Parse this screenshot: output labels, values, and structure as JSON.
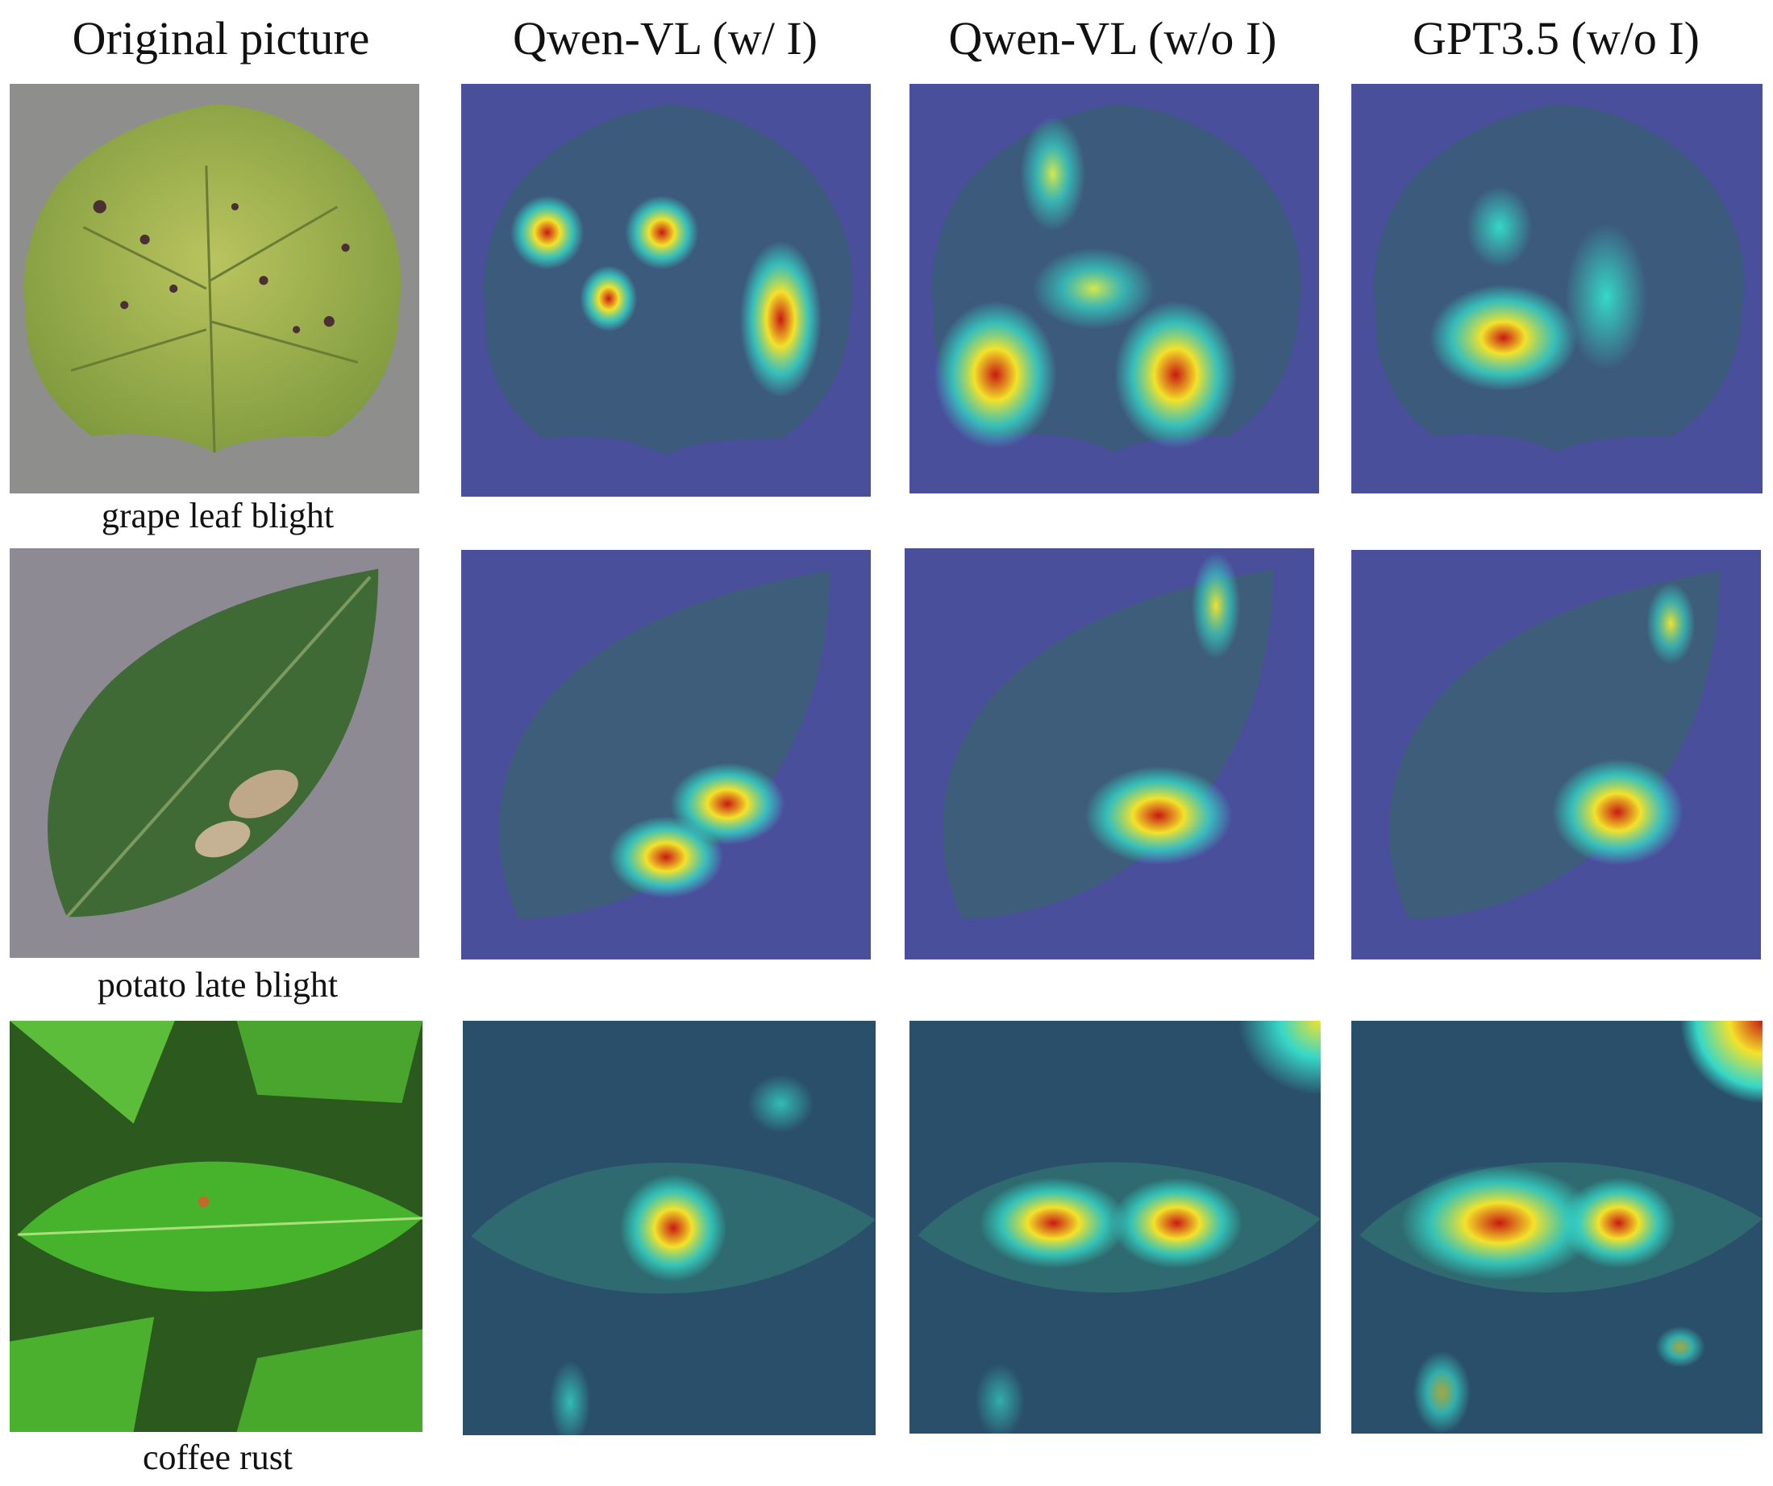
{
  "columns": [
    {
      "id": "original",
      "title": "Original picture"
    },
    {
      "id": "qwen_with_i",
      "title": "Qwen-VL (w/ I)"
    },
    {
      "id": "qwen_without_i",
      "title": "Qwen-VL (w/o I)"
    },
    {
      "id": "gpt35_without_i",
      "title": "GPT3.5 (w/o I)"
    }
  ],
  "rows": [
    {
      "id": "grape",
      "caption": "grape leaf blight"
    },
    {
      "id": "potato",
      "caption": "potato late blight"
    },
    {
      "id": "coffee",
      "caption": "coffee rust"
    }
  ],
  "colors": {
    "overlay_blue": "#4a4f9c",
    "grape_leaf": "#9fb453",
    "potato_leaf": "#3f6a36",
    "coffee_leaf": "#3fae2a",
    "heat_red": "#c81a12",
    "heat_yellow": "#f3e22a",
    "heat_cyan": "#36d7c8"
  }
}
